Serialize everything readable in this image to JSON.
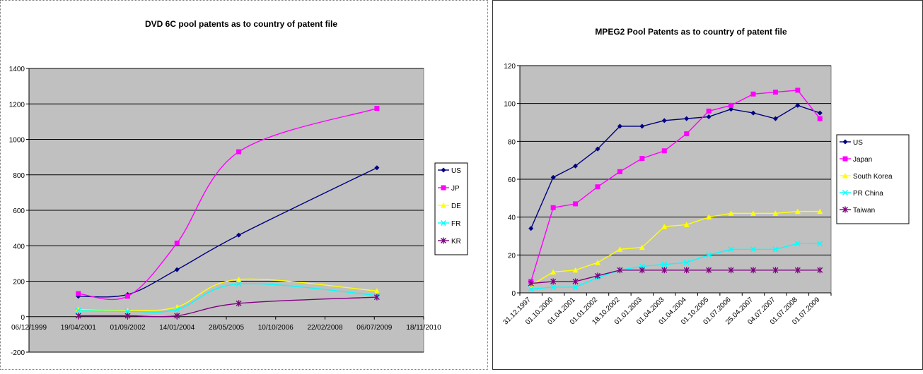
{
  "charts": [
    {
      "type": "line",
      "title": "DVD 6C pool patents as to country of patent file",
      "x_tick_labels": [
        "06/12/1999",
        "19/04/2001",
        "01/09/2002",
        "14/01/2004",
        "28/05/2005",
        "10/10/2006",
        "22/02/2008",
        "06/07/2009",
        "18/11/2010"
      ],
      "xlim": [
        "1999-12-06",
        "2010-11-18"
      ],
      "ylim": [
        -200,
        1400
      ],
      "y_ticks": [
        -200,
        0,
        200,
        400,
        600,
        800,
        1000,
        1200,
        1400
      ],
      "grid": true,
      "legend_position": "right",
      "x": [
        "2001-04-19",
        "2002-09-01",
        "2004-01-14",
        "2005-10-01",
        "2009-08-01"
      ],
      "series": [
        {
          "name": "US",
          "color": "#000080",
          "marker": "diamond",
          "values": [
            115,
            125,
            265,
            460,
            840
          ]
        },
        {
          "name": "JP",
          "color": "#ff00ff",
          "marker": "square",
          "values": [
            130,
            115,
            415,
            930,
            1175
          ]
        },
        {
          "name": "DE",
          "color": "#ffff00",
          "marker": "triangle",
          "values": [
            40,
            35,
            55,
            210,
            145
          ]
        },
        {
          "name": "FR",
          "color": "#00ffff",
          "marker": "x",
          "values": [
            35,
            30,
            40,
            185,
            120
          ]
        },
        {
          "name": "KR",
          "color": "#800080",
          "marker": "star",
          "values": [
            5,
            5,
            5,
            75,
            110
          ]
        }
      ]
    },
    {
      "type": "line",
      "title": "MPEG2 Pool Patents as to country of patent file",
      "categories": [
        "31.12.1997",
        "01.10.2000",
        "01.04.2001",
        "01.01.2002",
        "18.10.2002",
        "01.01.2003",
        "01.04.2003",
        "01.04.2004",
        "01.10.2005",
        "01.07.2006",
        "25.04.2007",
        "04.07.2007",
        "01.07.2008",
        "01.07.2009"
      ],
      "ylim": [
        0,
        120
      ],
      "y_ticks": [
        0,
        20,
        40,
        60,
        80,
        100,
        120
      ],
      "grid": true,
      "legend_position": "right",
      "series": [
        {
          "name": "US",
          "color": "#000080",
          "marker": "diamond",
          "values": [
            34,
            61,
            67,
            76,
            88,
            88,
            91,
            92,
            93,
            97,
            95,
            92,
            99,
            95
          ]
        },
        {
          "name": "Japan",
          "color": "#ff00ff",
          "marker": "square",
          "values": [
            6,
            45,
            47,
            56,
            64,
            71,
            75,
            84,
            96,
            99,
            105,
            106,
            107,
            92
          ]
        },
        {
          "name": "South Korea",
          "color": "#ffff00",
          "marker": "triangle",
          "values": [
            4,
            11,
            12,
            16,
            23,
            24,
            35,
            36,
            40,
            42,
            42,
            42,
            43,
            43
          ]
        },
        {
          "name": "PR China",
          "color": "#00ffff",
          "marker": "x",
          "values": [
            2,
            3,
            3,
            8,
            12,
            14,
            15,
            16,
            20,
            23,
            23,
            23,
            26,
            26
          ]
        },
        {
          "name": "Taiwan",
          "color": "#800080",
          "marker": "star",
          "values": [
            5,
            6,
            6,
            9,
            12,
            12,
            12,
            12,
            12,
            12,
            12,
            12,
            12,
            12
          ]
        }
      ]
    }
  ]
}
